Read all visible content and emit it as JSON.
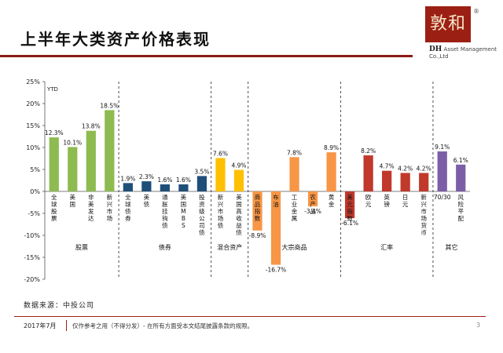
{
  "page": {
    "title": "上半年大类资产价格表现",
    "logo": {
      "mark": "敦和",
      "registered": "®",
      "brand": "DH",
      "brand_sub": "Asset Management Co.,Ltd"
    },
    "source": "数据来源：中投公司",
    "footer": {
      "date": "2017年7月",
      "note": "仅作参考之用（不得分发）- 在所有方面受本文结尾披露条款的规限。",
      "page_number": "3"
    }
  },
  "chart_data": {
    "type": "bar",
    "title": "上半年大类资产价格表现",
    "ylabel": "YTD",
    "ylim": [
      -20,
      25
    ],
    "yticks": [
      25,
      20,
      15,
      10,
      5,
      0,
      -5,
      -10,
      -15,
      -20
    ],
    "ytick_format": "percent",
    "grid": false,
    "groups": [
      {
        "name": "股票",
        "color": "#8dbb50",
        "bars": [
          {
            "label": "全球股票",
            "value": 12.3,
            "value_label": "12.3%"
          },
          {
            "label": "美国",
            "value": 10.1,
            "value_label": "10.1%"
          },
          {
            "label": "非美发达",
            "value": 13.8,
            "value_label": "13.8%"
          },
          {
            "label": "新兴市场",
            "value": 18.5,
            "value_label": "18.5%"
          }
        ]
      },
      {
        "name": "债券",
        "color": "#1f4e79",
        "bars": [
          {
            "label": "全球债券",
            "value": 1.9,
            "value_label": "1.9%"
          },
          {
            "label": "美债",
            "value": 2.3,
            "value_label": "2.3%"
          },
          {
            "label": "通胀挂钩债",
            "value": 1.6,
            "value_label": "1.6%"
          },
          {
            "label": "美国MBS",
            "value": 1.6,
            "value_label": "1.6%"
          },
          {
            "label": "投资级公司债",
            "value": 3.5,
            "value_label": "3.5%"
          }
        ]
      },
      {
        "name": "混合资产",
        "color": "#ffc000",
        "bars": [
          {
            "label": "新兴市场债",
            "value": 7.6,
            "value_label": "7.6%"
          },
          {
            "label": "美国高收益债",
            "value": 4.9,
            "value_label": "4.9%"
          }
        ]
      },
      {
        "name": "大宗商品",
        "color": "#f79646",
        "bars": [
          {
            "label": "商品指数",
            "value": -8.9,
            "value_label": "-8.9%"
          },
          {
            "label": "布油",
            "value": -16.7,
            "value_label": "-16.7%"
          },
          {
            "label": "工业金属",
            "value": 7.8,
            "value_label": "7.8%"
          },
          {
            "label": "农产品",
            "value": -3.4,
            "value_label": "-3.4%"
          },
          {
            "label": "黄金",
            "value": 8.9,
            "value_label": "8.9%"
          }
        ]
      },
      {
        "name": "汇率",
        "color": "#c0392b",
        "bars": [
          {
            "label": "美元指数",
            "value": -6.1,
            "value_label": "-6.1%"
          },
          {
            "label": "欧元",
            "value": 8.2,
            "value_label": "8.2%"
          },
          {
            "label": "英镑",
            "value": 4.7,
            "value_label": "4.7%"
          },
          {
            "label": "日元",
            "value": 4.2,
            "value_label": "4.2%"
          },
          {
            "label": "新兴市场货币",
            "value": 4.2,
            "value_label": "4.2%"
          }
        ]
      },
      {
        "name": "其它",
        "color": "#7b5ea7",
        "bars": [
          {
            "label": "70/30",
            "value": 9.1,
            "value_label": "9.1%"
          },
          {
            "label": "风险平配",
            "value": 6.1,
            "value_label": "6.1%"
          }
        ]
      }
    ]
  }
}
